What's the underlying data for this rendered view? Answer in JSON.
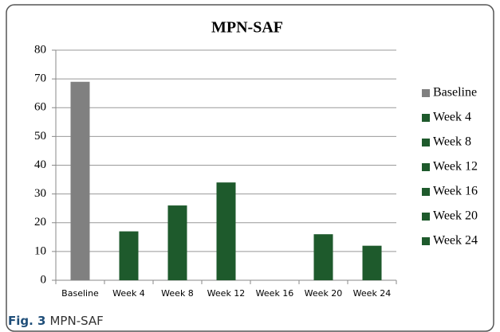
{
  "chart_data": {
    "type": "bar",
    "title": "MPN-SAF",
    "categories": [
      "Baseline",
      "Week 4",
      "Week 8",
      "Week 12",
      "Week 16",
      "Week 20",
      "Week 24"
    ],
    "values": [
      69,
      17,
      26,
      34,
      null,
      16,
      12
    ],
    "colors": [
      "#808080",
      "#1e5a2c",
      "#1e5a2c",
      "#1e5a2c",
      "#1e5a2c",
      "#1e5a2c",
      "#1e5a2c"
    ],
    "ylim": [
      0,
      80
    ],
    "yticks": [
      0,
      10,
      20,
      30,
      40,
      50,
      60,
      70,
      80
    ],
    "grid": true,
    "legend": "right"
  },
  "caption": {
    "label": "Fig. 3",
    "text": "MPN-SAF"
  }
}
